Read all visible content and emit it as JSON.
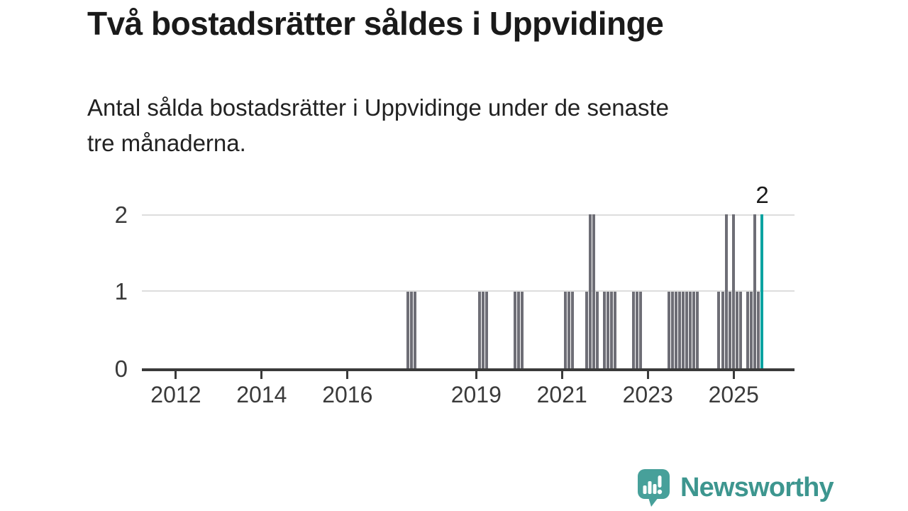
{
  "title": "Två bostadsrätter såldes i Uppvidinge",
  "subtitle": {
    "lines": [
      "Antal sålda bostadsrätter i Uppvidinge under de senaste",
      "tre månaderna."
    ]
  },
  "chart_data": {
    "type": "bar",
    "title": "Två bostadsrätter såldes i Uppvidinge",
    "subtitle": "Antal sålda bostadsrätter i Uppvidinge under de senaste tre månaderna.",
    "freq": "monthly",
    "x_start_month": "2011-04",
    "x_end_month": "2025-09",
    "ylim": [
      0,
      2
    ],
    "y_ticks": [
      "0",
      "1",
      "2"
    ],
    "x_tick_years": [
      2012,
      2014,
      2016,
      2019,
      2021,
      2023,
      2025
    ],
    "grid": "horizontal",
    "legend": "none",
    "bar_color": "#6e6e76",
    "highlight_color": "#0aa3a1",
    "last_value_label": "2",
    "values": [
      0,
      0,
      0,
      0,
      0,
      0,
      0,
      0,
      0,
      0,
      0,
      0,
      0,
      0,
      0,
      0,
      0,
      0,
      0,
      0,
      0,
      0,
      0,
      0,
      0,
      0,
      0,
      0,
      0,
      0,
      0,
      0,
      0,
      0,
      0,
      0,
      0,
      0,
      0,
      0,
      0,
      0,
      0,
      0,
      0,
      0,
      0,
      0,
      0,
      0,
      0,
      0,
      0,
      0,
      0,
      0,
      0,
      0,
      0,
      0,
      0,
      0,
      0,
      0,
      0,
      0,
      0,
      0,
      0,
      0,
      0,
      0,
      0,
      0,
      1,
      1,
      1,
      0,
      0,
      0,
      0,
      0,
      0,
      0,
      0,
      0,
      0,
      0,
      0,
      0,
      0,
      0,
      0,
      0,
      1,
      1,
      1,
      0,
      0,
      0,
      0,
      0,
      0,
      0,
      1,
      1,
      1,
      0,
      0,
      0,
      0,
      0,
      0,
      0,
      0,
      0,
      0,
      0,
      1,
      1,
      1,
      0,
      0,
      0,
      1,
      2,
      2,
      1,
      0,
      1,
      1,
      1,
      1,
      0,
      0,
      0,
      0,
      1,
      1,
      1,
      0,
      0,
      0,
      0,
      0,
      0,
      0,
      1,
      1,
      1,
      1,
      1,
      1,
      1,
      1,
      1,
      0,
      0,
      0,
      0,
      0,
      1,
      1,
      2,
      1,
      2,
      1,
      1,
      0,
      1,
      1,
      2,
      1,
      2
    ]
  },
  "logo": {
    "text": "Newsworthy",
    "icon": "newsworthy-speech-bubble-bar-chart-icon",
    "icon_color": "#47a09a",
    "text_color": "#3d968f"
  }
}
